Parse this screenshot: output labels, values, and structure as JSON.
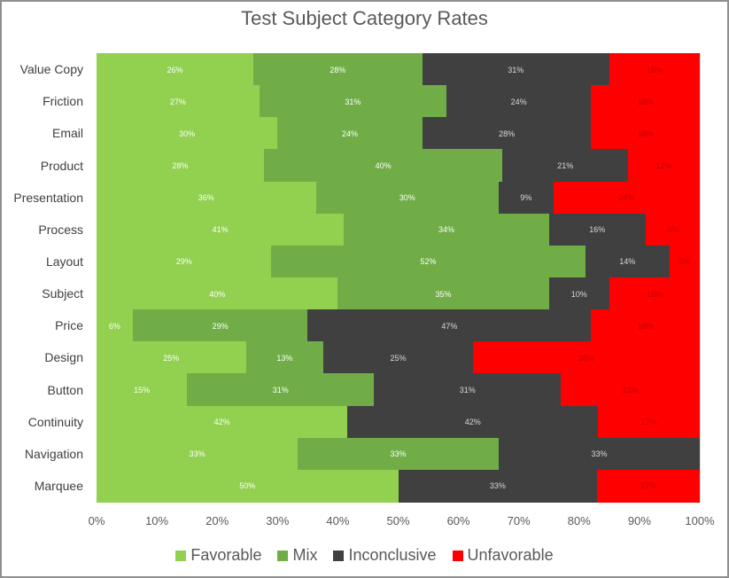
{
  "chart_data": {
    "type": "bar",
    "orientation": "horizontal",
    "stacked": "percent",
    "title": "Test Subject Category Rates",
    "xlabel": "",
    "ylabel": "",
    "xlim": [
      0,
      100
    ],
    "x_ticks": [
      "0%",
      "10%",
      "20%",
      "30%",
      "40%",
      "50%",
      "60%",
      "70%",
      "80%",
      "90%",
      "100%"
    ],
    "legend_position": "bottom",
    "grid": true,
    "categories": [
      "Value Copy",
      "Friction",
      "Email",
      "Product",
      "Presentation",
      "Process",
      "Layout",
      "Subject",
      "Price",
      "Design",
      "Button",
      "Continuity",
      "Navigation",
      "Marquee"
    ],
    "series": [
      {
        "name": "Favorable",
        "color": "#92d050",
        "values": [
          26,
          27,
          30,
          28,
          36,
          41,
          29,
          40,
          6,
          25,
          15,
          42,
          33,
          50
        ]
      },
      {
        "name": "Mix",
        "color": "#70ad47",
        "values": [
          28,
          31,
          24,
          40,
          30,
          34,
          52,
          35,
          29,
          13,
          31,
          0,
          33,
          0
        ]
      },
      {
        "name": "Inconclusive",
        "color": "#404040",
        "values": [
          31,
          24,
          28,
          21,
          9,
          16,
          14,
          10,
          47,
          25,
          31,
          42,
          33,
          33
        ]
      },
      {
        "name": "Unfavorable",
        "color": "#ff0000",
        "values": [
          15,
          18,
          18,
          12,
          24,
          9,
          5,
          15,
          18,
          38,
          23,
          17,
          0,
          17
        ]
      }
    ]
  },
  "title": "Test Subject Category Rates",
  "legend": [
    {
      "label": "Favorable",
      "color": "#92d050"
    },
    {
      "label": "Mix",
      "color": "#70ad47"
    },
    {
      "label": "Inconclusive",
      "color": "#404040"
    },
    {
      "label": "Unfavorable",
      "color": "#ff0000"
    }
  ]
}
